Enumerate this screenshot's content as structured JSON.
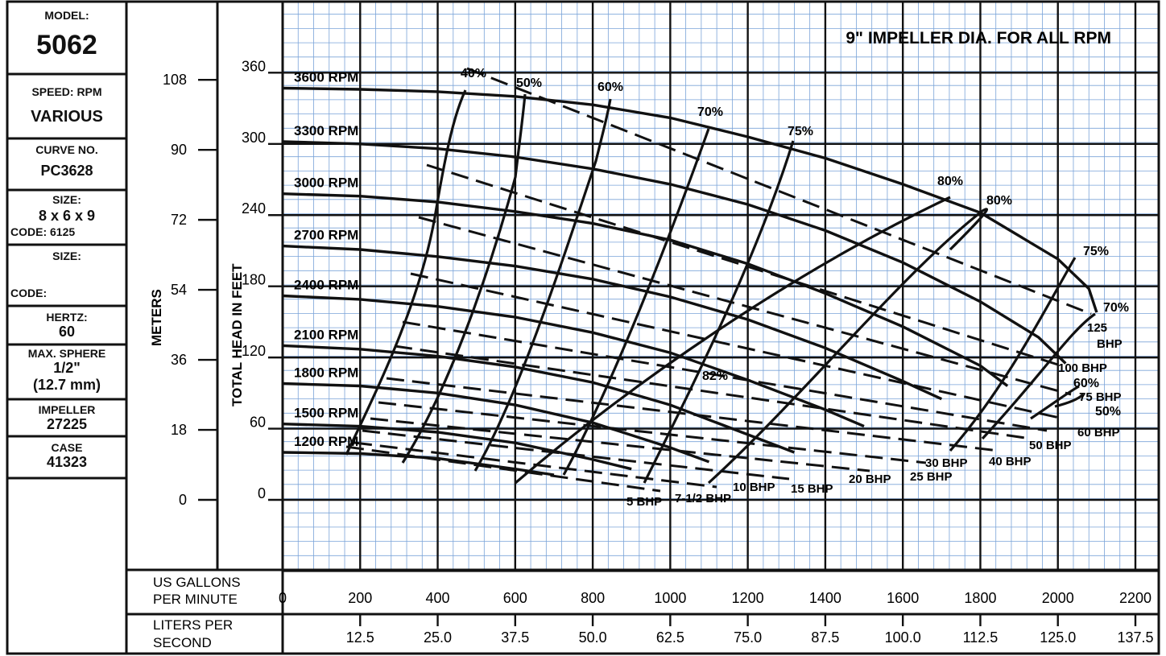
{
  "sidebar": {
    "model_label": "MODEL:",
    "model_value": "5062",
    "speed_label": "SPEED: RPM",
    "speed_value": "VARIOUS",
    "curve_label": "CURVE NO.",
    "curve_value": "PC3628",
    "size_label": "SIZE:",
    "size_value": "8 x 6 x 9",
    "code_label": "CODE: 6125",
    "size2_label": "SIZE:",
    "code2_label": "CODE:",
    "hertz_label": "HERTZ:",
    "hertz_value": "60",
    "sphere_label": "MAX. SPHERE",
    "sphere_value1": "1/2\"",
    "sphere_value2": "(12.7 mm)",
    "impeller_label": "IMPELLER",
    "impeller_value": "27225",
    "case_label": "CASE",
    "case_value": "41323"
  },
  "chart_data": {
    "type": "line",
    "title": "9\" IMPELLER DIA. FOR ALL RPM",
    "xlabel": "US GALLONS PER MINUTE",
    "xlabel2": "LITERS PER SECOND",
    "ylabel": "TOTAL HEAD IN FEET",
    "ylabel2": "METERS",
    "xlim": [
      0,
      2200
    ],
    "ylim": [
      -60,
      400
    ],
    "grid": true,
    "x_ticks": [
      "0",
      "200",
      "400",
      "600",
      "800",
      "1000",
      "1200",
      "1400",
      "1600",
      "1800",
      "2000",
      "2200"
    ],
    "lps_ticks": [
      {
        "gpm": 200,
        "label": "12.5"
      },
      {
        "gpm": 400,
        "label": "25.0"
      },
      {
        "gpm": 600,
        "label": "37.5"
      },
      {
        "gpm": 800,
        "label": "50.0"
      },
      {
        "gpm": 1000,
        "label": "62.5"
      },
      {
        "gpm": 1200,
        "label": "75.0"
      },
      {
        "gpm": 1400,
        "label": "87.5"
      },
      {
        "gpm": 1600,
        "label": "100.0"
      },
      {
        "gpm": 1800,
        "label": "112.5"
      },
      {
        "gpm": 2000,
        "label": "125.0"
      },
      {
        "gpm": 2200,
        "label": "137.5"
      }
    ],
    "y_ticks": [
      {
        "ft": 0,
        "label": "0"
      },
      {
        "ft": 60,
        "label": "60"
      },
      {
        "ft": 120,
        "label": "120"
      },
      {
        "ft": 180,
        "label": "180"
      },
      {
        "ft": 240,
        "label": "240"
      },
      {
        "ft": 300,
        "label": "300"
      },
      {
        "ft": 360,
        "label": "360"
      }
    ],
    "m_ticks": [
      {
        "ft": 0,
        "label": "0"
      },
      {
        "ft": 59,
        "label": "18"
      },
      {
        "ft": 118,
        "label": "36"
      },
      {
        "ft": 177,
        "label": "54"
      },
      {
        "ft": 236,
        "label": "72"
      },
      {
        "ft": 295,
        "label": "90"
      },
      {
        "ft": 354,
        "label": "108"
      }
    ],
    "series": [
      {
        "name": "3600 RPM",
        "x": [
          0,
          200,
          400,
          600,
          800,
          1000,
          1200,
          1400,
          1600,
          1800,
          2000,
          2080,
          2100
        ],
        "y": [
          347,
          346,
          344,
          340,
          333,
          322,
          306,
          288,
          266,
          242,
          203,
          178,
          158
        ]
      },
      {
        "name": "3300 RPM",
        "x": [
          0,
          200,
          400,
          600,
          800,
          1000,
          1200,
          1400,
          1600,
          1800,
          1950,
          2020
        ],
        "y": [
          302,
          300,
          296,
          289,
          279,
          266,
          249,
          227,
          200,
          167,
          137,
          115
        ]
      },
      {
        "name": "3000 RPM",
        "x": [
          0,
          200,
          400,
          600,
          800,
          1000,
          1200,
          1400,
          1600,
          1800,
          1870
        ],
        "y": [
          258,
          256,
          251,
          243,
          233,
          219,
          199,
          174,
          146,
          113,
          96
        ]
      },
      {
        "name": "2700 RPM",
        "x": [
          0,
          200,
          400,
          600,
          800,
          1000,
          1200,
          1400,
          1600,
          1700
        ],
        "y": [
          214,
          211,
          205,
          197,
          186,
          171,
          152,
          128,
          100,
          85
        ]
      },
      {
        "name": "2400 RPM",
        "x": [
          0,
          200,
          400,
          600,
          800,
          1000,
          1200,
          1400,
          1500
        ],
        "y": [
          172,
          169,
          163,
          154,
          141,
          124,
          101,
          76,
          62
        ]
      },
      {
        "name": "2100 RPM",
        "x": [
          0,
          200,
          400,
          600,
          800,
          1000,
          1200,
          1320
        ],
        "y": [
          130,
          127,
          121,
          112,
          99,
          80,
          55,
          40
        ]
      },
      {
        "name": "1800 RPM",
        "x": [
          0,
          200,
          400,
          600,
          800,
          1000,
          1100
        ],
        "y": [
          98,
          96,
          90,
          80,
          65,
          44,
          32
        ]
      },
      {
        "name": "1500 RPM",
        "x": [
          0,
          200,
          400,
          600,
          800,
          900
        ],
        "y": [
          64,
          62,
          57,
          48,
          34,
          26
        ]
      },
      {
        "name": "1200 RPM",
        "x": [
          0,
          200,
          400,
          600,
          700
        ],
        "y": [
          40,
          39,
          35,
          26,
          21
        ]
      }
    ],
    "efficiency_labels": [
      "40%",
      "50%",
      "60%",
      "70%",
      "75%",
      "80%",
      "80%",
      "82%",
      "75%",
      "70%",
      "60%",
      "50%"
    ],
    "bhp_labels": [
      "5 BHP",
      "7-1/2 BHP",
      "10 BHP",
      "15 BHP",
      "20 BHP",
      "25 BHP",
      "30 BHP",
      "40 BHP",
      "50 BHP",
      "60 BHP",
      "75 BHP",
      "100 BHP",
      "125",
      "BHP"
    ]
  }
}
